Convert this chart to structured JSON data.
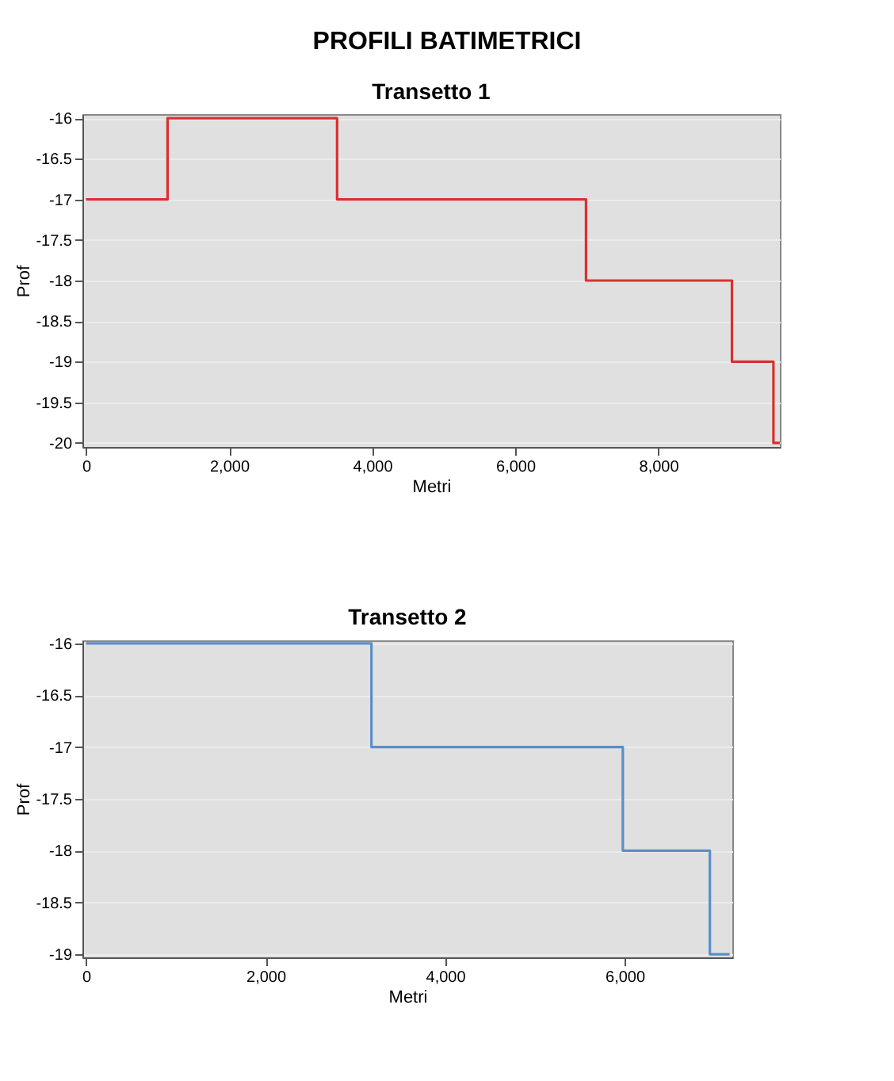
{
  "chart_data": [
    {
      "type": "step",
      "title": "Transetto 1",
      "annotations": [
        "PROFILI BATIMETRICI"
      ],
      "xlabel": "Metri",
      "ylabel": "Prof",
      "x": [
        0,
        1140,
        3510,
        6990,
        9030,
        9610,
        9700
      ],
      "series": [
        {
          "color": "#d93030",
          "values": [
            -17,
            -16,
            -17,
            -18,
            -19,
            -20,
            -20
          ]
        }
      ],
      "xlim": [
        -50,
        9700
      ],
      "ylim": [
        -20.05,
        -15.95
      ],
      "xticks": [
        0,
        {
          "value": 2000,
          "label": "2,000"
        },
        {
          "value": 4000,
          "label": "4,000"
        },
        {
          "value": 6000,
          "label": "6,000"
        },
        {
          "value": 8000,
          "label": "8,000"
        }
      ],
      "yticks": [
        -16,
        -16.5,
        -17,
        -17.5,
        -18,
        -18.5,
        -19,
        -19.5,
        -20
      ],
      "grid": "y"
    },
    {
      "type": "step",
      "title": "Transetto 2",
      "xlabel": "Metri",
      "ylabel": "Prof",
      "x": [
        0,
        3180,
        5980,
        6950,
        7170
      ],
      "series": [
        {
          "color": "#5b8ec8",
          "values": [
            -16,
            -17,
            -18,
            -19,
            -19
          ]
        }
      ],
      "xlim": [
        -40,
        7200
      ],
      "ylim": [
        -19.03,
        -15.97
      ],
      "xticks": [
        0,
        {
          "value": 2000,
          "label": "2,000"
        },
        {
          "value": 4000,
          "label": "4,000"
        },
        {
          "value": 6000,
          "label": "6,000"
        }
      ],
      "yticks": [
        -16,
        -16.5,
        -17,
        -17.5,
        -18,
        -18.5,
        -19
      ],
      "grid": "y"
    }
  ]
}
